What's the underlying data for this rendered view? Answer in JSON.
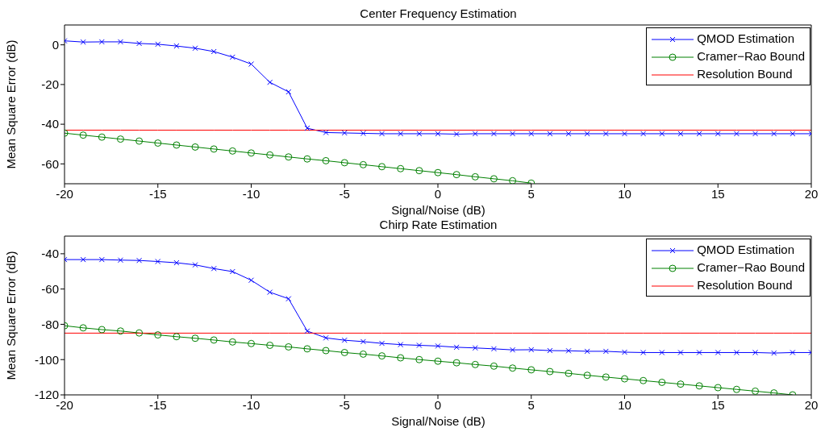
{
  "chart_data": [
    {
      "type": "line",
      "title": "Center Frequency Estimation",
      "xlabel": "Signal/Noise (dB)",
      "ylabel": "Mean Square Error (dB)",
      "x": [
        -20,
        -19,
        -18,
        -17,
        -16,
        -15,
        -14,
        -13,
        -12,
        -11,
        -10,
        -9,
        -8,
        -7,
        -6,
        -5,
        -4,
        -3,
        -2,
        -1,
        0,
        1,
        2,
        3,
        4,
        5,
        6,
        7,
        8,
        9,
        10,
        11,
        12,
        13,
        14,
        15,
        16,
        17,
        18,
        19,
        20
      ],
      "xlim": [
        -20,
        20
      ],
      "xticks": [
        -20,
        -15,
        -10,
        -5,
        0,
        5,
        10,
        15,
        20
      ],
      "ylim": [
        -70,
        10
      ],
      "yticks": [
        -60,
        -40,
        -20,
        0
      ],
      "grid": false,
      "legend": "top right",
      "series": [
        {
          "name": "QMOD Estimation",
          "color": "#0000ff",
          "marker": "cross",
          "values": [
            2,
            1.4,
            1.5,
            1.5,
            0.7,
            0.3,
            -0.6,
            -1.7,
            -3.4,
            -6.2,
            -9.7,
            -18.9,
            -23.7,
            -42,
            -44.2,
            -44.4,
            -44.6,
            -44.8,
            -44.8,
            -44.8,
            -44.8,
            -45,
            -44.8,
            -44.8,
            -44.8,
            -44.8,
            -44.8,
            -44.8,
            -44.8,
            -44.8,
            -44.8,
            -44.8,
            -44.8,
            -44.8,
            -44.8,
            -44.8,
            -44.8,
            -44.8,
            -44.8,
            -44.8,
            -44.8
          ]
        },
        {
          "name": "Cramer−Rao Bound",
          "color": "#008000",
          "marker": "circle",
          "values": [
            -44.5,
            -45.5,
            -46.5,
            -47.5,
            -48.5,
            -49.5,
            -50.5,
            -51.5,
            -52.5,
            -53.5,
            -54.5,
            -55.5,
            -56.5,
            -57.5,
            -58.4,
            -59.4,
            -60.4,
            -61.4,
            -62.4,
            -63.4,
            -64.4,
            -65.4,
            -66.5,
            -67.5,
            -68.5,
            -69.7,
            null,
            null,
            null,
            null,
            null,
            null,
            null,
            null,
            null,
            null,
            null,
            null,
            null,
            null,
            null
          ]
        },
        {
          "name": "Resolution Bound",
          "color": "#ff0000",
          "marker": "none",
          "values": [
            -43,
            -43,
            -43,
            -43,
            -43,
            -43,
            -43,
            -43,
            -43,
            -43,
            -43,
            -43,
            -43,
            -43,
            -43,
            -43,
            -43,
            -43,
            -43,
            -43,
            -43,
            -43,
            -43,
            -43,
            -43,
            -43,
            -43,
            -43,
            -43,
            -43,
            -43,
            -43,
            -43,
            -43,
            -43,
            -43,
            -43,
            -43,
            -43,
            -43,
            -43
          ]
        }
      ]
    },
    {
      "type": "line",
      "title": "Chirp Rate Estimation",
      "xlabel": "Signal/Noise (dB)",
      "ylabel": "Mean Square Error (dB)",
      "x": [
        -20,
        -19,
        -18,
        -17,
        -16,
        -15,
        -14,
        -13,
        -12,
        -11,
        -10,
        -9,
        -8,
        -7,
        -6,
        -5,
        -4,
        -3,
        -2,
        -1,
        0,
        1,
        2,
        3,
        4,
        5,
        6,
        7,
        8,
        9,
        10,
        11,
        12,
        13,
        14,
        15,
        16,
        17,
        18,
        19,
        20
      ],
      "xlim": [
        -20,
        20
      ],
      "xticks": [
        -20,
        -15,
        -10,
        -5,
        0,
        5,
        10,
        15,
        20
      ],
      "ylim": [
        -120,
        -30
      ],
      "yticks": [
        -120,
        -100,
        -80,
        -60,
        -40
      ],
      "grid": false,
      "legend": "top right",
      "series": [
        {
          "name": "QMOD Estimation",
          "color": "#0000ff",
          "marker": "cross",
          "values": [
            -43.3,
            -43.3,
            -43.3,
            -43.6,
            -43.8,
            -44.4,
            -45.1,
            -46.3,
            -48.4,
            -50.1,
            -55,
            -61.8,
            -65.5,
            -83.8,
            -87.7,
            -89,
            -89.8,
            -90.8,
            -91.5,
            -91.9,
            -92.3,
            -93,
            -93.4,
            -93.9,
            -94.5,
            -94.4,
            -94.9,
            -95,
            -95.3,
            -95.3,
            -95.8,
            -96,
            -96,
            -96,
            -96,
            -96,
            -96,
            -96,
            -96.3,
            -96,
            -96
          ]
        },
        {
          "name": "Cramer−Rao Bound",
          "color": "#008000",
          "marker": "circle",
          "values": [
            -80.8,
            -82,
            -83,
            -83.8,
            -84.9,
            -86,
            -87,
            -87.9,
            -88.9,
            -90,
            -90.9,
            -91.9,
            -92.8,
            -93.9,
            -94.9,
            -96,
            -96.9,
            -97.9,
            -99,
            -100,
            -100.9,
            -101.8,
            -102.8,
            -103.7,
            -104.8,
            -105.8,
            -106.8,
            -107.8,
            -108.9,
            -109.9,
            -110.9,
            -111.9,
            -112.9,
            -113.9,
            -114.9,
            -115.9,
            -116.9,
            -117.9,
            -118.9,
            -120,
            null
          ]
        },
        {
          "name": "Resolution Bound",
          "color": "#ff0000",
          "marker": "none",
          "values": [
            -85,
            -85,
            -85,
            -85,
            -85,
            -85,
            -85,
            -85,
            -85,
            -85,
            -85,
            -85,
            -85,
            -85,
            -85,
            -85,
            -85,
            -85,
            -85,
            -85,
            -85,
            -85,
            -85,
            -85,
            -85,
            -85,
            -85,
            -85,
            -85,
            -85,
            -85,
            -85,
            -85,
            -85,
            -85,
            -85,
            -85,
            -85,
            -85,
            -85,
            -85
          ]
        }
      ]
    }
  ]
}
